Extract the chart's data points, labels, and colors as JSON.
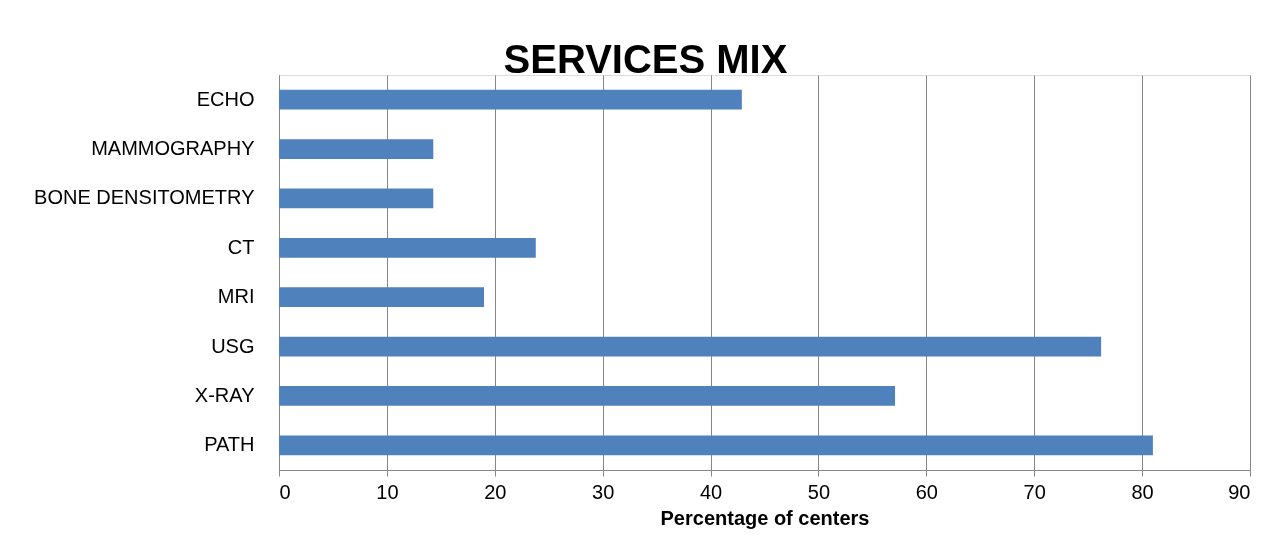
{
  "chart_data": {
    "type": "bar",
    "title": "SERVICES MIX",
    "xlabel": "Percentage of centers",
    "orientation": "horizontal",
    "categories": [
      "ECHO",
      "MAMMOGRAPHY",
      "BONE DENSITOMETRY",
      "CT",
      "MRI",
      "USG",
      "X-RAY",
      "PATH"
    ],
    "values": [
      42.9,
      14.3,
      14.3,
      23.8,
      19.0,
      76.2,
      57.1,
      81.0
    ],
    "color": "#4f81bd",
    "xlim": [
      0,
      90
    ],
    "xticks": [
      0,
      10,
      20,
      30,
      40,
      50,
      60,
      70,
      80,
      90
    ],
    "grid": "x"
  }
}
